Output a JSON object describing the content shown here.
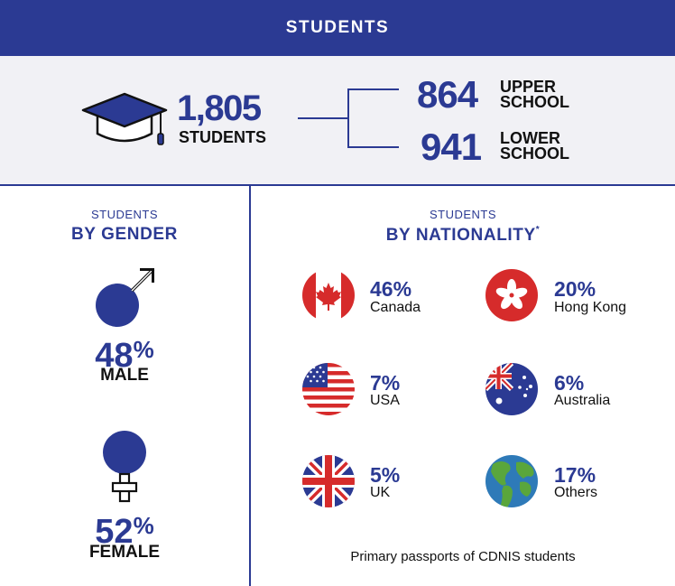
{
  "header": {
    "title": "STUDENTS"
  },
  "totals": {
    "total_value": "1,805",
    "total_label": "STUDENTS",
    "upper_value": "864",
    "upper_label_line1": "UPPER",
    "upper_label_line2": "SCHOOL",
    "lower_value": "941",
    "lower_label_line1": "LOWER",
    "lower_label_line2": "SCHOOL"
  },
  "gender": {
    "kicker": "STUDENTS",
    "title": "BY GENDER",
    "male_value": "48",
    "male_sign": "%",
    "male_label": "MALE",
    "female_value": "52",
    "female_sign": "%",
    "female_label": "FEMALE"
  },
  "nationality": {
    "kicker": "STUDENTS",
    "title": "BY NATIONALITY",
    "title_mark": "*",
    "items": [
      {
        "pct": "46%",
        "name": "Canada",
        "icon": "canada-flag-icon"
      },
      {
        "pct": "20%",
        "name": "Hong Kong",
        "icon": "hong-kong-flag-icon"
      },
      {
        "pct": "7%",
        "name": "USA",
        "icon": "usa-flag-icon"
      },
      {
        "pct": "6%",
        "name": "Australia",
        "icon": "australia-flag-icon"
      },
      {
        "pct": "5%",
        "name": "UK",
        "icon": "uk-flag-icon"
      },
      {
        "pct": "17%",
        "name": "Others",
        "icon": "globe-icon"
      }
    ],
    "footnote": "Primary passports of CDNIS students"
  },
  "colors": {
    "brand": "#2b3a93",
    "panel": "#f1f1f5"
  }
}
